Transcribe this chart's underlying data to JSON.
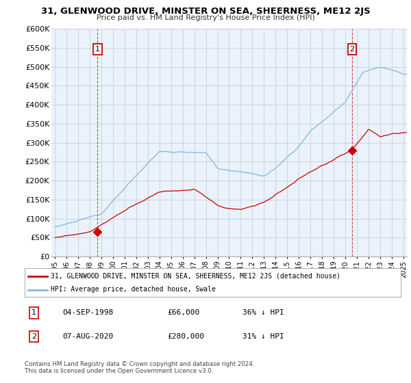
{
  "title": "31, GLENWOOD DRIVE, MINSTER ON SEA, SHEERNESS, ME12 2JS",
  "subtitle": "Price paid vs. HM Land Registry's House Price Index (HPI)",
  "ylabel_ticks": [
    "£0",
    "£50K",
    "£100K",
    "£150K",
    "£200K",
    "£250K",
    "£300K",
    "£350K",
    "£400K",
    "£450K",
    "£500K",
    "£550K",
    "£600K"
  ],
  "ytick_values": [
    0,
    50000,
    100000,
    150000,
    200000,
    250000,
    300000,
    350000,
    400000,
    450000,
    500000,
    550000,
    600000
  ],
  "ylim": [
    0,
    600000
  ],
  "hpi_color": "#7ab8e8",
  "price_color": "#cc0000",
  "vline_color": "#cc0000",
  "bg_color": "#eaf2fb",
  "legend_label_price": "31, GLENWOOD DRIVE, MINSTER ON SEA, SHEERNESS, ME12 2JS (detached house)",
  "legend_label_hpi": "HPI: Average price, detached house, Swale",
  "annotation1_label": "1",
  "annotation1_date": "04-SEP-1998",
  "annotation1_price": "£66,000",
  "annotation1_hpi": "36% ↓ HPI",
  "annotation2_label": "2",
  "annotation2_date": "07-AUG-2020",
  "annotation2_price": "£280,000",
  "annotation2_hpi": "31% ↓ HPI",
  "footer": "Contains HM Land Registry data © Crown copyright and database right 2024.\nThis data is licensed under the Open Government Licence v3.0.",
  "sale1_x": 1998.67,
  "sale1_y": 66000,
  "sale2_x": 2020.58,
  "sale2_y": 280000,
  "xmin": 1995.0,
  "xmax": 2025.3
}
